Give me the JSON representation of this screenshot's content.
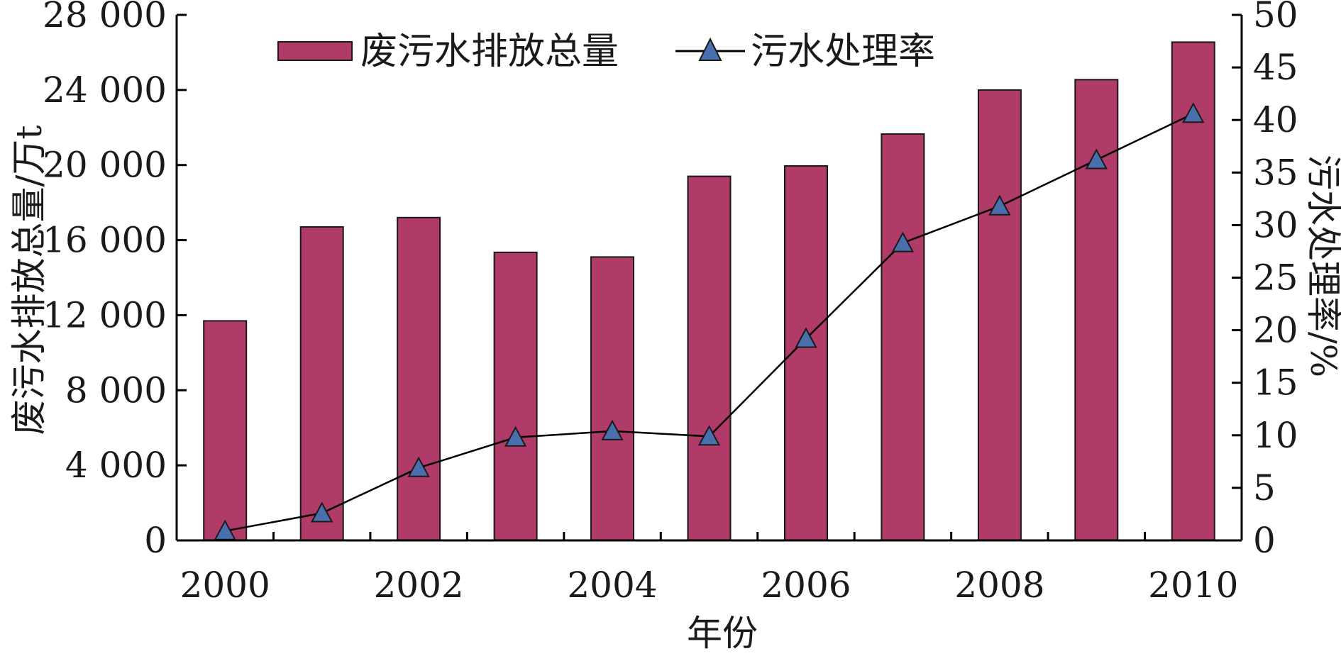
{
  "chart_data": {
    "type": "bar",
    "title": "",
    "xlabel": "年份",
    "ylabel": "废污水排放总量/万t",
    "y2label": "污水处理率/%",
    "categories": [
      "2000",
      "2001",
      "2002",
      "2003",
      "2004",
      "2005",
      "2006",
      "2007",
      "2008",
      "2009",
      "2010"
    ],
    "x_tick_labels": [
      "2000",
      "2002",
      "2004",
      "2006",
      "2008",
      "2010"
    ],
    "y_tick_labels": [
      "0",
      "4 000",
      "8 000",
      "12 000",
      "16 000",
      "20 000",
      "24 000",
      "28 000"
    ],
    "y2_tick_labels": [
      "0",
      "5",
      "10",
      "15",
      "20",
      "25",
      "30",
      "35",
      "40",
      "45",
      "50"
    ],
    "ylim": [
      0,
      28000
    ],
    "y2lim": [
      0,
      50
    ],
    "legend_position": "top",
    "grid": false,
    "series": [
      {
        "name": "废污水排放总量",
        "type": "bar",
        "axis": "left",
        "color": "#b03a68",
        "values": [
          11700,
          16700,
          17200,
          15350,
          15100,
          19400,
          19950,
          21650,
          24000,
          24550,
          26550
        ]
      },
      {
        "name": "污水处理率",
        "type": "line",
        "axis": "right",
        "marker": "triangle",
        "color": "#000000",
        "marker_color": "#4a6fad",
        "values": [
          0.9,
          2.6,
          6.9,
          9.8,
          10.4,
          9.9,
          19.2,
          28.3,
          31.8,
          36.2,
          40.6
        ]
      }
    ]
  }
}
